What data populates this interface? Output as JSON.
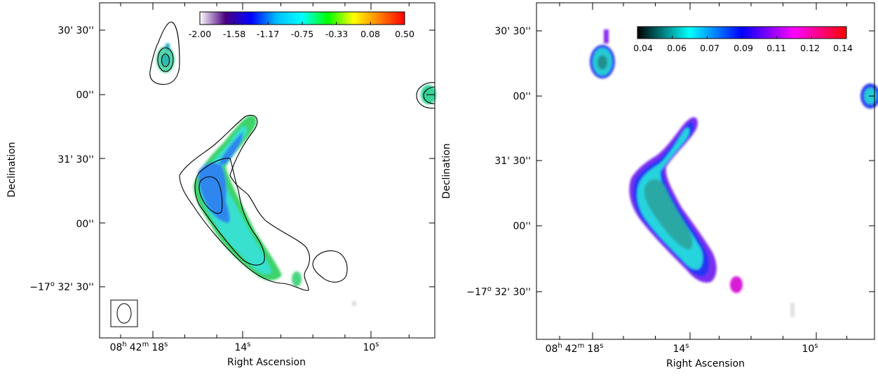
{
  "figure": {
    "panels": [
      {
        "id": "left",
        "ylabel": "Declination",
        "xlabel": "Right Ascension",
        "dec_ticks": [
          {
            "value": "30' 30''",
            "prefix": ""
          },
          {
            "value": "00''",
            "prefix": ""
          },
          {
            "value": "31' 30''",
            "prefix": ""
          },
          {
            "value": "00''",
            "prefix": ""
          },
          {
            "value": "32' 30''",
            "prefix": "-17° "
          }
        ],
        "ra_ticks": [
          {
            "h": "08",
            "m": "42",
            "s": "18"
          },
          {
            "s": "14"
          },
          {
            "s": "10"
          }
        ],
        "colorbar": {
          "colormap": "rainbow",
          "stops": [
            "#ffffff",
            "#4b0082",
            "#0000ff",
            "#00bfff",
            "#00ffff",
            "#00ff00",
            "#ffff00",
            "#ff8000",
            "#ff0000"
          ],
          "tick_labels": [
            "-2.00",
            "-1.58",
            "-1.17",
            "-0.75",
            "-0.33",
            "0.08",
            "0.50"
          ]
        },
        "beam": "ellipse",
        "contours": true
      },
      {
        "id": "right",
        "ylabel": "Declination",
        "xlabel": "Right Ascension",
        "dec_ticks": [
          {
            "value": "30' 30''",
            "prefix": ""
          },
          {
            "value": "00''",
            "prefix": ""
          },
          {
            "value": "31' 30''",
            "prefix": ""
          },
          {
            "value": "00''",
            "prefix": ""
          },
          {
            "value": "32' 30''",
            "prefix": "-17° "
          }
        ],
        "ra_ticks": [
          {
            "h": "08",
            "m": "42",
            "s": "18"
          },
          {
            "s": "14"
          },
          {
            "s": "10"
          }
        ],
        "colorbar": {
          "colormap": "black-cyan-blue-magenta-red",
          "stops": [
            "#000000",
            "#00ffff",
            "#0000ff",
            "#ff00ff",
            "#ff0000"
          ],
          "tick_labels": [
            "0.04",
            "0.06",
            "0.07",
            "0.09",
            "0.11",
            "0.12",
            "0.14"
          ]
        },
        "beam": "none",
        "contours": false
      }
    ]
  },
  "chart_data": [
    {
      "type": "heatmap",
      "title": "",
      "xlabel": "Right Ascension",
      "ylabel": "Declination",
      "x_ticks": [
        "08h 42m 18s",
        "14s",
        "10s"
      ],
      "y_ticks": [
        "30' 30''",
        "00''",
        "31' 30''",
        "00''",
        "-17° 32' 30''"
      ],
      "colorbar_range": [
        -2.0,
        0.5
      ],
      "colorbar_ticks": [
        -2.0,
        -1.58,
        -1.17,
        -0.75,
        -0.33,
        0.08,
        0.5
      ],
      "approx_values": {
        "main_ridge": -1.17,
        "ridge_tip": -0.5,
        "north_source": -0.6,
        "east_source": -0.6
      }
    },
    {
      "type": "heatmap",
      "title": "",
      "xlabel": "Right Ascension",
      "ylabel": "Declination",
      "x_ticks": [
        "08h 42m 18s",
        "14s",
        "10s"
      ],
      "y_ticks": [
        "30' 30''",
        "00''",
        "31' 30''",
        "00''",
        "-17° 32' 30''"
      ],
      "colorbar_range": [
        0.04,
        0.14
      ],
      "colorbar_ticks": [
        0.04,
        0.06,
        0.07,
        0.09,
        0.11,
        0.12,
        0.14
      ],
      "approx_values": {
        "main_ridge_core": 0.055,
        "main_ridge_edge": 0.09,
        "south_blob": 0.11
      }
    }
  ]
}
